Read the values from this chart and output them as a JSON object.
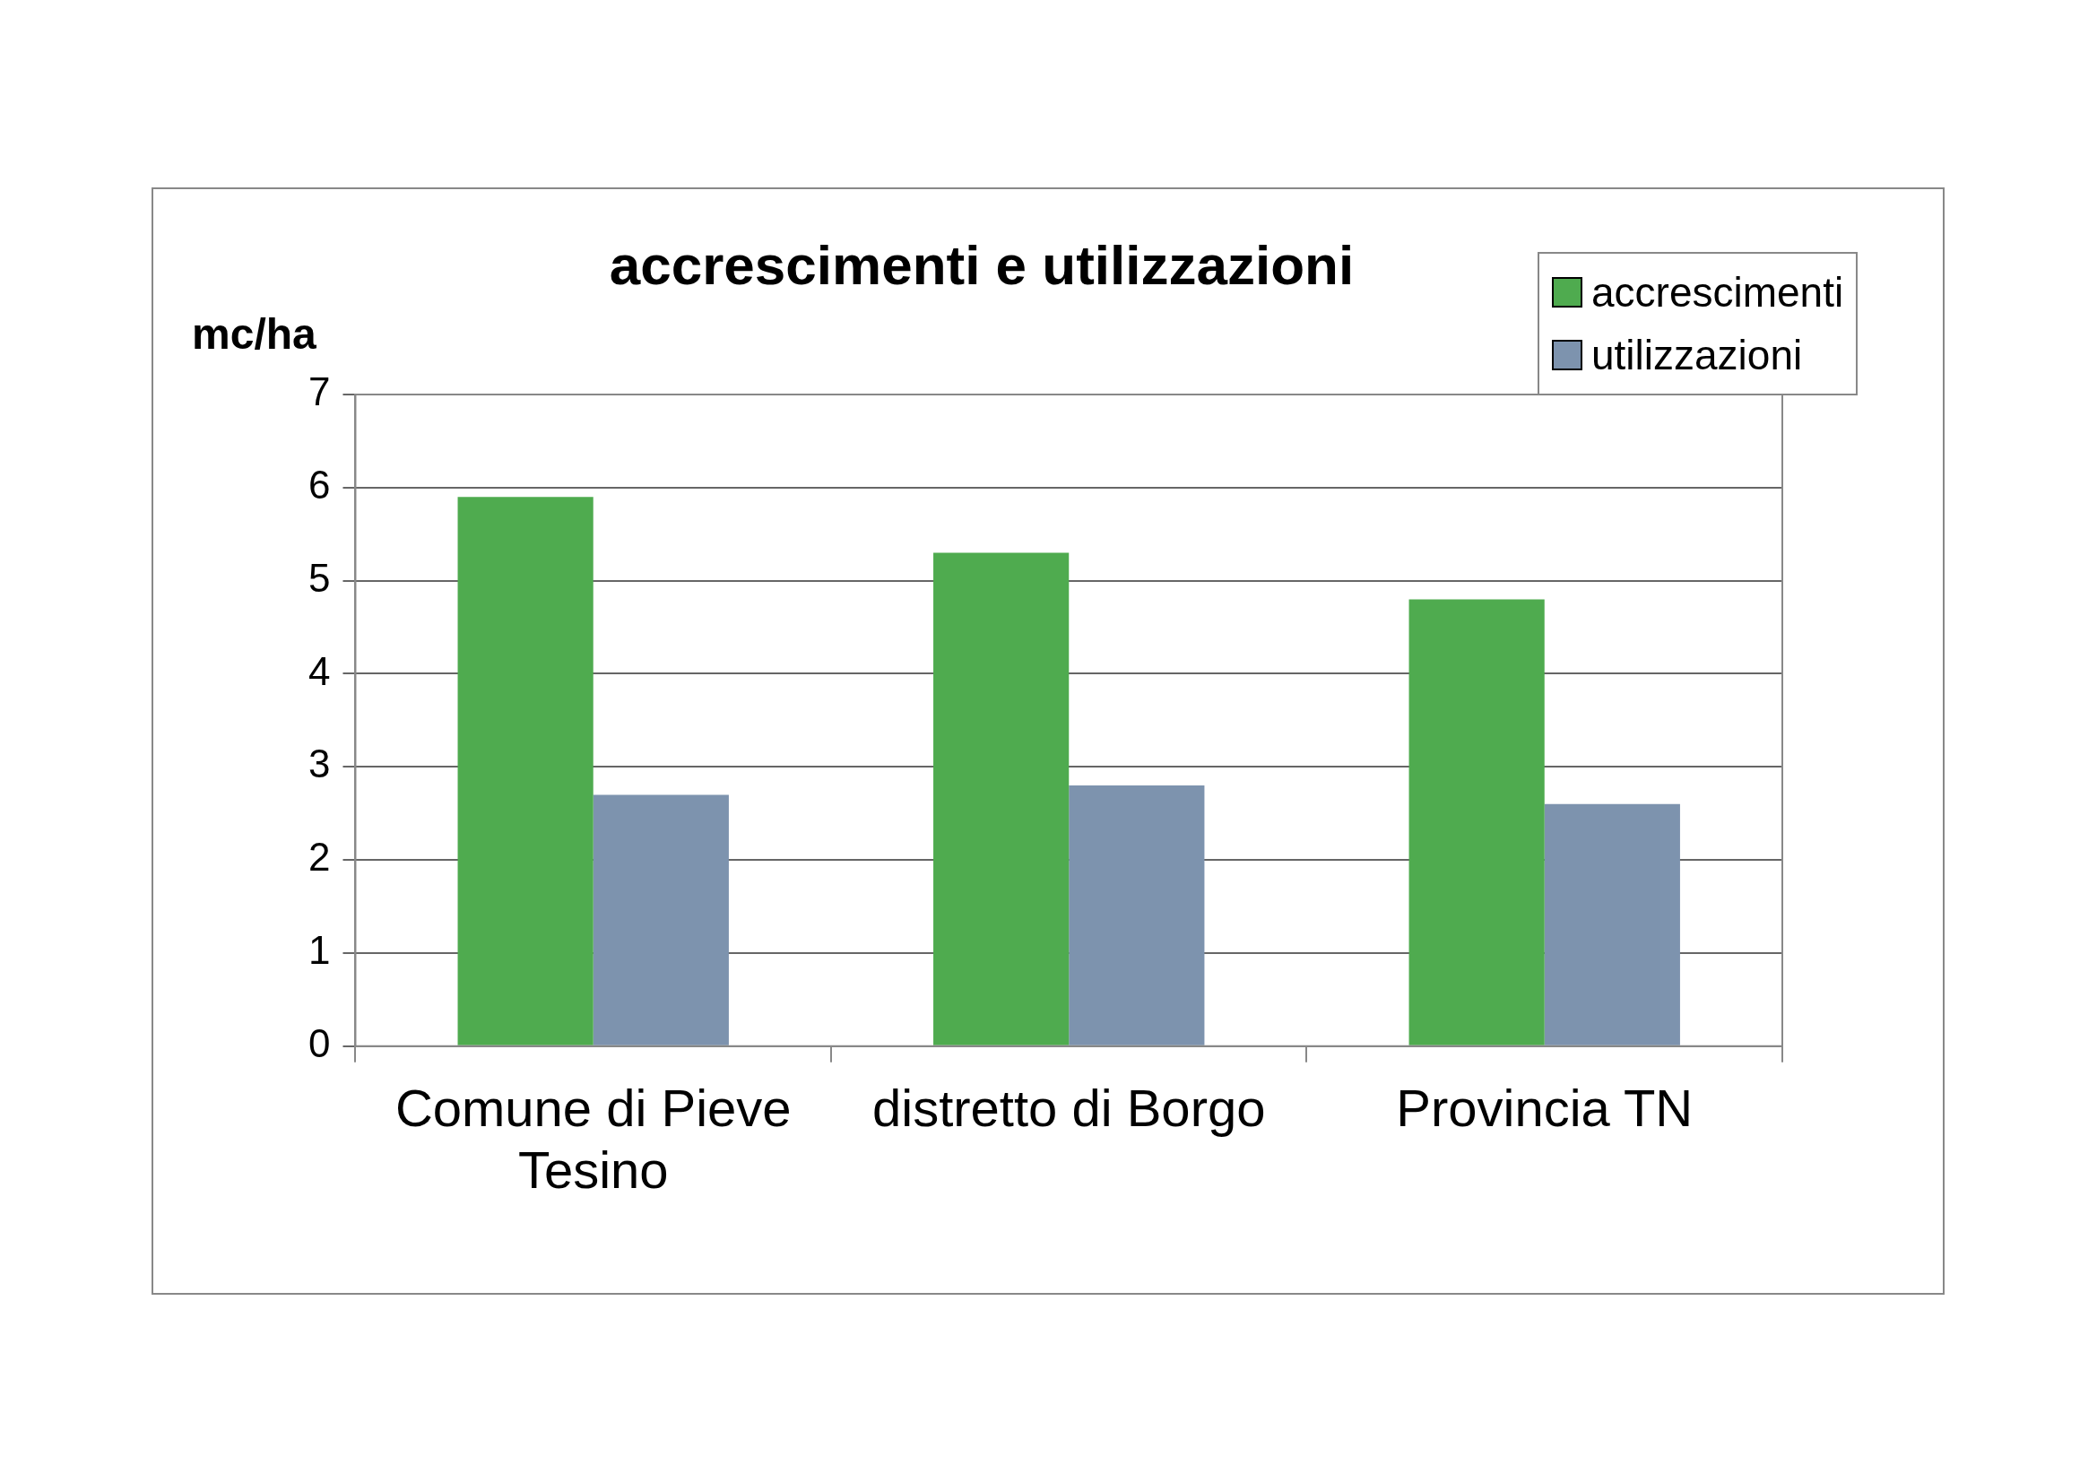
{
  "chart_data": {
    "type": "bar",
    "title": "accrescimenti e utilizzazioni",
    "ylabel": "mc/ha",
    "categories": [
      "Comune di Pieve Tesino",
      "distretto di Borgo",
      "Provincia TN"
    ],
    "series": [
      {
        "name": "accrescimenti",
        "color": "#4fab4f",
        "values": [
          5.9,
          5.3,
          4.8
        ]
      },
      {
        "name": "utilizzazioni",
        "color": "#7d93ae",
        "values": [
          2.7,
          2.8,
          2.6
        ]
      }
    ],
    "ylim": [
      0,
      7
    ],
    "yticks": [
      0,
      1,
      2,
      3,
      4,
      5,
      6,
      7
    ],
    "grid": "y",
    "legend": "top right"
  }
}
